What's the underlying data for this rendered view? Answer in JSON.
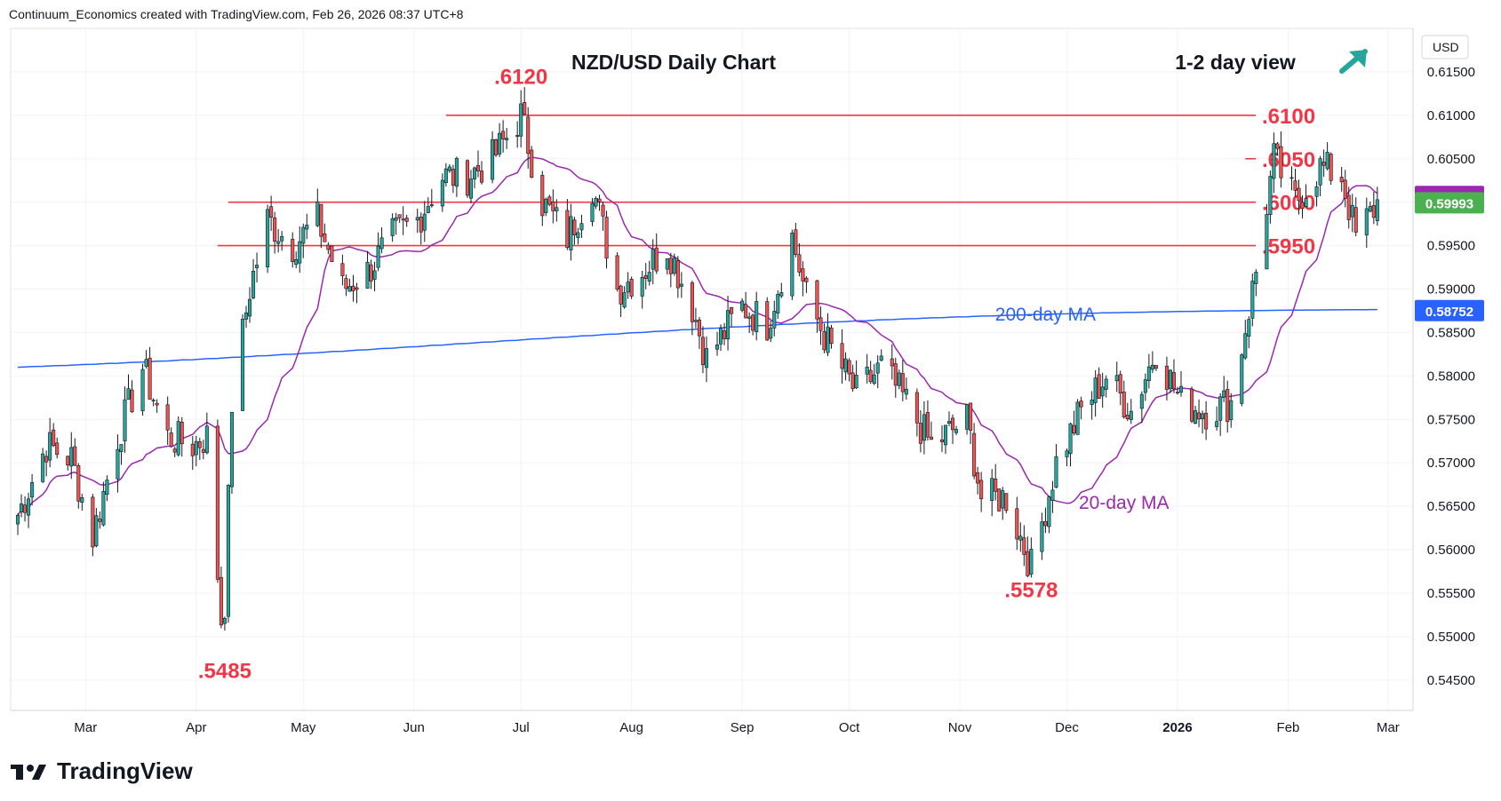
{
  "header": {
    "credit": "Continuum_Economics created with TradingView.com, Feb 26, 2026 08:37 UTC+8"
  },
  "branding": {
    "logo_text": "TradingView"
  },
  "chart_data": {
    "type": "candlestick",
    "title": "NZD/USD Daily Chart",
    "view": {
      "label": "1-2 day view",
      "direction": "up",
      "color": "#26a69a"
    },
    "currency": "USD",
    "ylim": [
      0.5415,
      0.62
    ],
    "yticks": [
      "0.61500",
      "0.61000",
      "0.60500",
      "0.60000",
      "0.59500",
      "0.59000",
      "0.58500",
      "0.58000",
      "0.57500",
      "0.57000",
      "0.56500",
      "0.56000",
      "0.55500",
      "0.55000",
      "0.54500"
    ],
    "xtick_labels": [
      "Mar",
      "Apr",
      "May",
      "Jun",
      "Jul",
      "Aug",
      "Sep",
      "Oct",
      "Nov",
      "Dec",
      "2026",
      "Feb",
      "Mar"
    ],
    "horizontal_levels": [
      {
        "label": ".6100",
        "value": 0.61,
        "from": "2025-06-10"
      },
      {
        "label": ".6050",
        "value": 0.605,
        "from": "2026-01-20"
      },
      {
        "label": ".6000",
        "value": 0.6,
        "from": "2025-04-10"
      },
      {
        "label": ".5950",
        "value": 0.595,
        "from": "2025-04-07"
      }
    ],
    "annotations": [
      {
        "text": ".6120",
        "date": "2025-07-01",
        "value": 0.612,
        "pos": "above"
      },
      {
        "text": ".5485",
        "date": "2025-04-09",
        "value": 0.5485,
        "pos": "below"
      },
      {
        "text": ".5578",
        "date": "2025-11-21",
        "value": 0.5578,
        "pos": "below"
      },
      {
        "text": "200-day MA",
        "date": "2025-11-25",
        "value": 0.5872
      },
      {
        "text": "20-day MA",
        "date": "2025-12-17",
        "value": 0.5655
      }
    ],
    "price_badges": [
      {
        "label": "0.60066",
        "value": 0.60066,
        "color": "#9c27b0"
      },
      {
        "label": "0.59993",
        "value": 0.59993,
        "color": "#4caf50"
      },
      {
        "label": "0.58752",
        "value": 0.58752,
        "color": "#2962ff"
      }
    ],
    "colors": {
      "up": "#26a69a",
      "down": "#ef5350",
      "ma20": "#9c27b0",
      "ma200": "#2962ff",
      "level": "#f23645"
    },
    "series": [
      {
        "name": "Close (approx.)",
        "points": [
          [
            "2025-02-10",
            0.564
          ],
          [
            "2025-02-18",
            0.572
          ],
          [
            "2025-02-25",
            0.5705
          ],
          [
            "2025-03-03",
            0.5615
          ],
          [
            "2025-03-10",
            0.573
          ],
          [
            "2025-03-17",
            0.581
          ],
          [
            "2025-03-24",
            0.573
          ],
          [
            "2025-03-31",
            0.572
          ],
          [
            "2025-04-04",
            0.573
          ],
          [
            "2025-04-08",
            0.552
          ],
          [
            "2025-04-09",
            0.554
          ],
          [
            "2025-04-11",
            0.577
          ],
          [
            "2025-04-16",
            0.59
          ],
          [
            "2025-04-21",
            0.598
          ],
          [
            "2025-04-28",
            0.595
          ],
          [
            "2025-05-05",
            0.598
          ],
          [
            "2025-05-12",
            0.59
          ],
          [
            "2025-05-19",
            0.592
          ],
          [
            "2025-05-26",
            0.596
          ],
          [
            "2025-06-02",
            0.598
          ],
          [
            "2025-06-09",
            0.603
          ],
          [
            "2025-06-16",
            0.603
          ],
          [
            "2025-06-23",
            0.605
          ],
          [
            "2025-07-01",
            0.61
          ],
          [
            "2025-07-07",
            0.6
          ],
          [
            "2025-07-14",
            0.596
          ],
          [
            "2025-07-21",
            0.602
          ],
          [
            "2025-07-28",
            0.59
          ],
          [
            "2025-08-04",
            0.592
          ],
          [
            "2025-08-11",
            0.595
          ],
          [
            "2025-08-18",
            0.588
          ],
          [
            "2025-08-22",
            0.582
          ],
          [
            "2025-09-01",
            0.588
          ],
          [
            "2025-09-08",
            0.586
          ],
          [
            "2025-09-15",
            0.596
          ],
          [
            "2025-09-19",
            0.589
          ],
          [
            "2025-09-26",
            0.583
          ],
          [
            "2025-10-03",
            0.578
          ],
          [
            "2025-10-10",
            0.581
          ],
          [
            "2025-10-17",
            0.577
          ],
          [
            "2025-10-24",
            0.572
          ],
          [
            "2025-11-03",
            0.575
          ],
          [
            "2025-11-07",
            0.566
          ],
          [
            "2025-11-14",
            0.566
          ],
          [
            "2025-11-21",
            0.558
          ],
          [
            "2025-11-28",
            0.57
          ],
          [
            "2025-12-05",
            0.576
          ],
          [
            "2025-12-12",
            0.58
          ],
          [
            "2025-12-19",
            0.576
          ],
          [
            "2025-12-26",
            0.583
          ],
          [
            "2026-01-02",
            0.577
          ],
          [
            "2026-01-09",
            0.576
          ],
          [
            "2026-01-16",
            0.577
          ],
          [
            "2026-01-23",
            0.592
          ],
          [
            "2026-01-28",
            0.605
          ],
          [
            "2026-02-03",
            0.6
          ],
          [
            "2026-02-10",
            0.604
          ],
          [
            "2026-02-16",
            0.603
          ],
          [
            "2026-02-20",
            0.596
          ],
          [
            "2026-02-26",
            0.5999
          ]
        ]
      }
    ]
  }
}
